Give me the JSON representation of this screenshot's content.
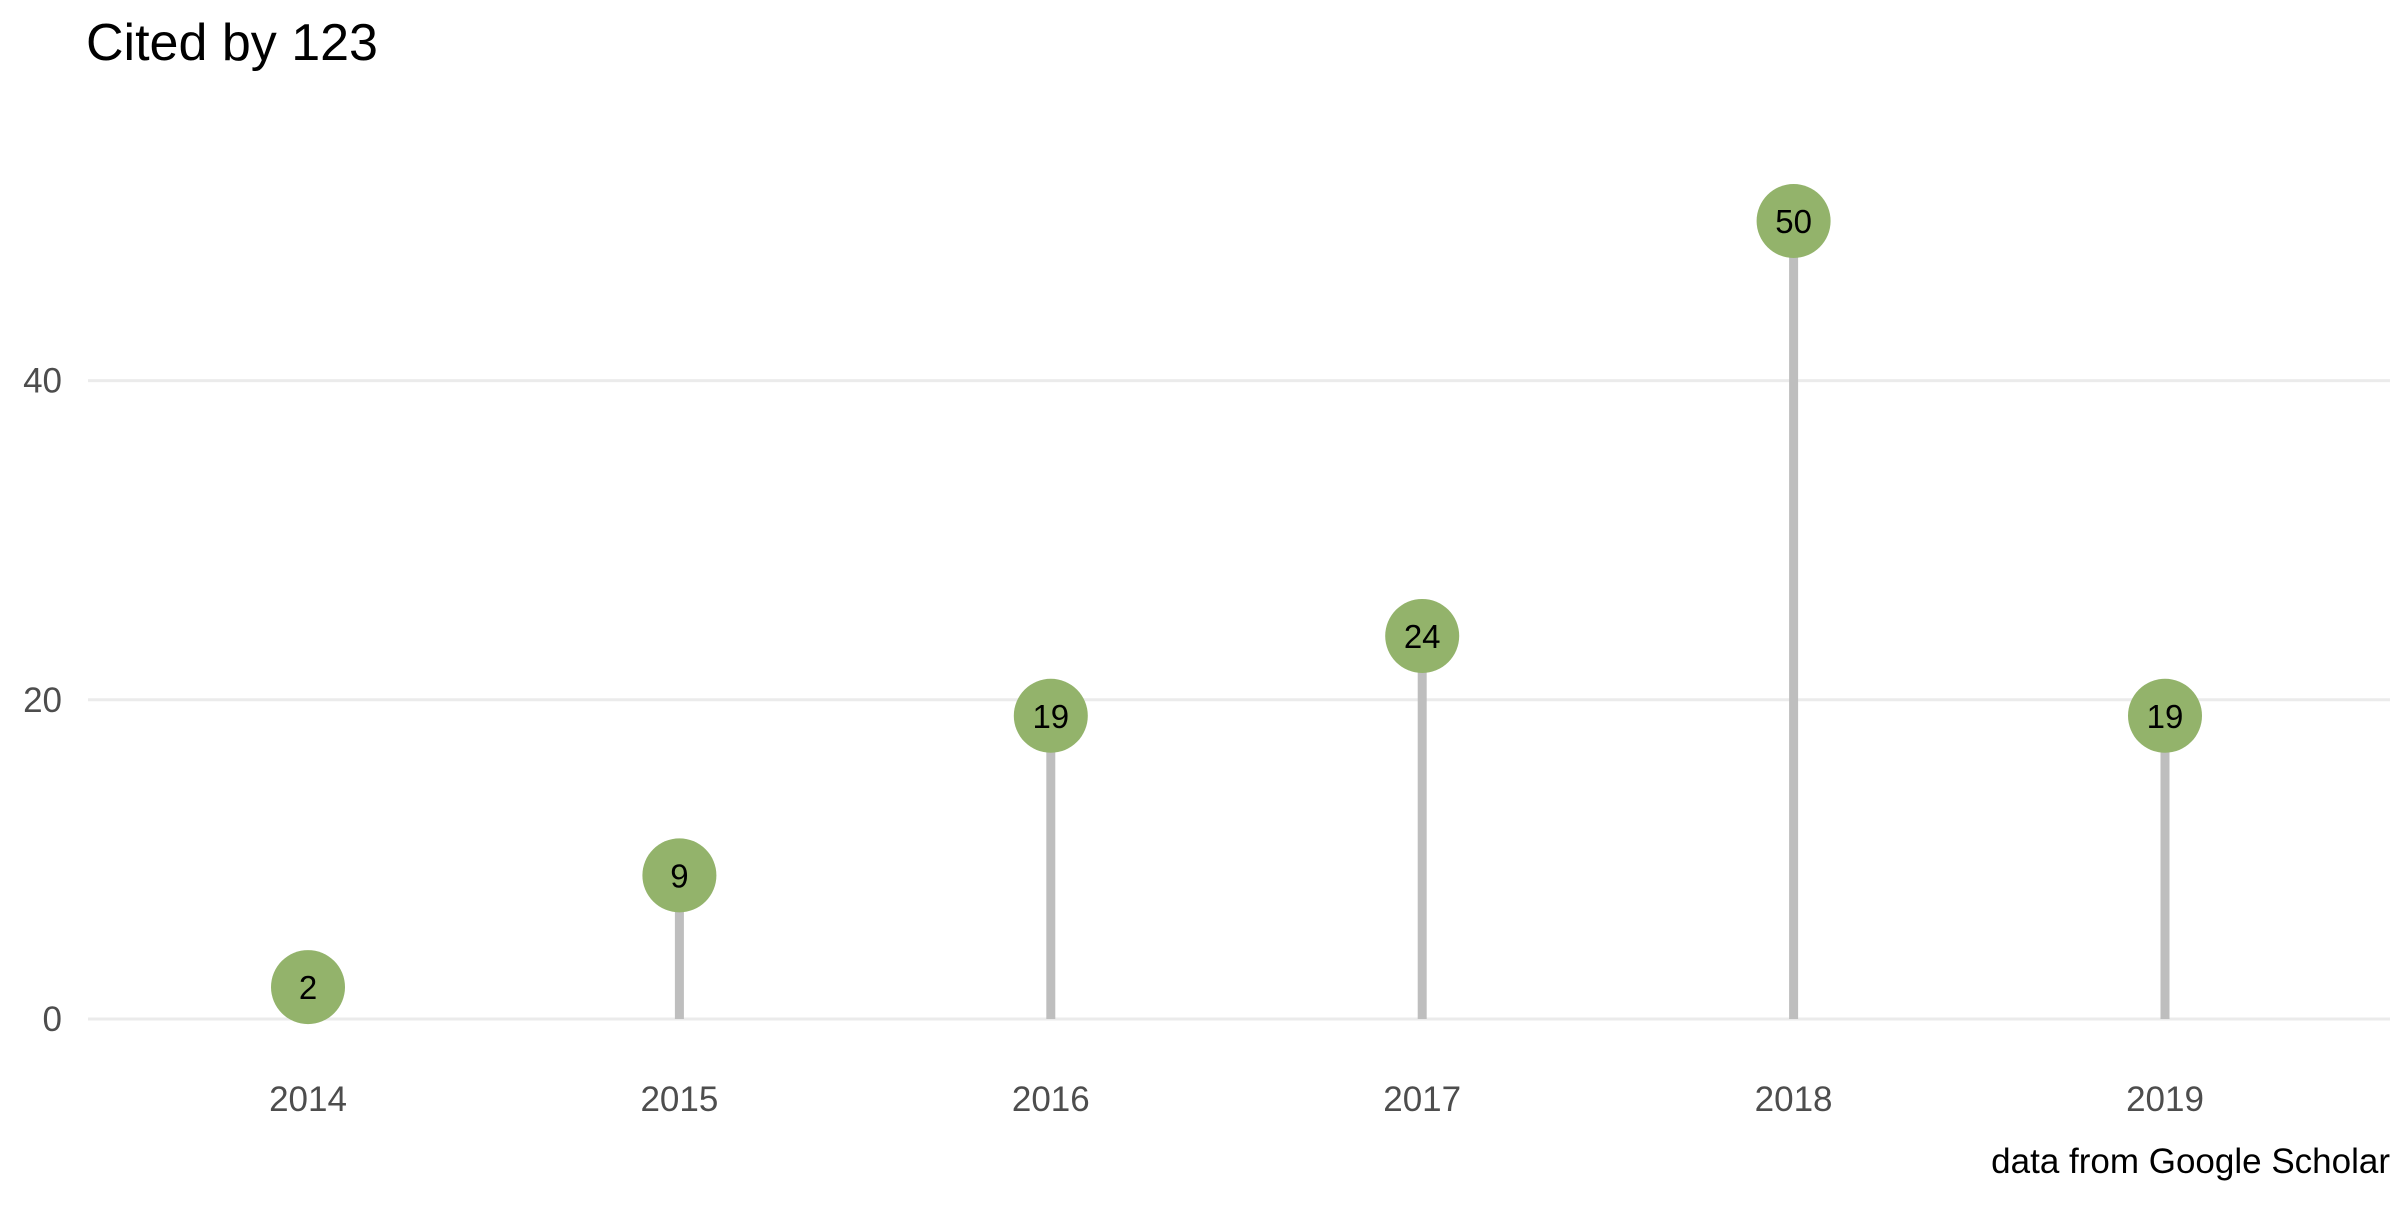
{
  "chart_data": {
    "type": "lollipop",
    "title": "Cited by 123",
    "caption": "data from Google Scholar",
    "categories": [
      "2014",
      "2015",
      "2016",
      "2017",
      "2018",
      "2019"
    ],
    "values": [
      2,
      9,
      19,
      24,
      50,
      19
    ],
    "ylim": [
      0,
      50
    ],
    "yticks": [
      0,
      20,
      40
    ],
    "grid": true,
    "colors": {
      "point": "#93b36b",
      "stem": "#bebebe",
      "grid": "#ebebeb",
      "tick_text": "#4d4d4d",
      "label_text": "#000000"
    }
  }
}
